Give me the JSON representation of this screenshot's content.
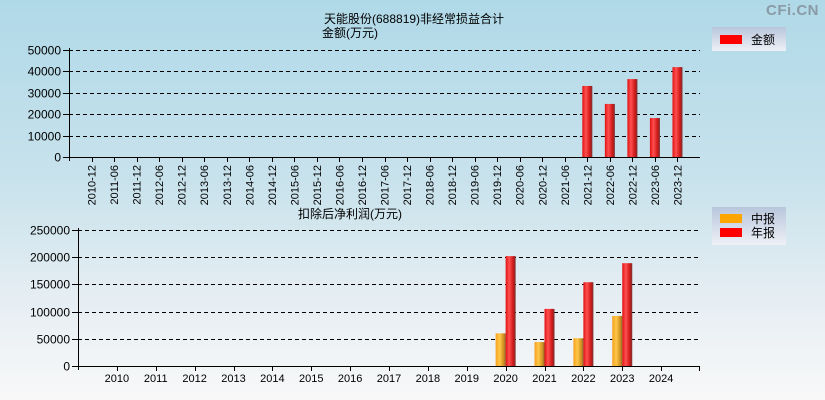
{
  "watermark": "CFi.CN",
  "chart_data": [
    {
      "type": "bar",
      "title": "天能股份(688819)非经常损益合计",
      "subtitle": "金额(万元)",
      "xlabel": "",
      "ylabel": "金额(万元)",
      "ylim": [
        0,
        50000
      ],
      "yticks": [
        0,
        10000,
        20000,
        30000,
        40000,
        50000
      ],
      "grid": true,
      "legend_position": "top-right",
      "categories": [
        "2010-12",
        "2011-06",
        "2011-12",
        "2012-06",
        "2012-12",
        "2013-06",
        "2013-12",
        "2014-06",
        "2014-12",
        "2015-06",
        "2015-12",
        "2016-06",
        "2016-12",
        "2017-06",
        "2017-12",
        "2018-06",
        "2018-12",
        "2019-06",
        "2019-12",
        "2020-06",
        "2020-12",
        "2021-06",
        "2021-12",
        "2022-06",
        "2022-12",
        "2023-06",
        "2023-12"
      ],
      "series": [
        {
          "name": "金额",
          "color": "#ff0000",
          "values": [
            null,
            null,
            null,
            null,
            null,
            null,
            null,
            null,
            null,
            null,
            null,
            null,
            null,
            null,
            null,
            null,
            null,
            null,
            null,
            null,
            null,
            null,
            33200,
            24800,
            36400,
            18200,
            42000
          ]
        }
      ]
    },
    {
      "type": "bar",
      "title": "扣除后净利润(万元)",
      "xlabel": "",
      "ylabel": "万元",
      "ylim": [
        0,
        250000
      ],
      "yticks": [
        0,
        50000,
        100000,
        150000,
        200000,
        250000
      ],
      "grid": true,
      "legend_position": "top-right",
      "categories": [
        "2010",
        "2011",
        "2012",
        "2013",
        "2014",
        "2015",
        "2016",
        "2017",
        "2018",
        "2019",
        "2020",
        "2021",
        "2022",
        "2023",
        "2024"
      ],
      "series": [
        {
          "name": "中报",
          "color": "#ffa500",
          "values": [
            null,
            null,
            null,
            null,
            null,
            null,
            null,
            null,
            null,
            null,
            60000,
            44000,
            51000,
            92000,
            null
          ]
        },
        {
          "name": "年报",
          "color": "#ff0000",
          "values": [
            null,
            null,
            null,
            null,
            null,
            null,
            null,
            null,
            null,
            null,
            202000,
            105000,
            154000,
            189000,
            null
          ]
        }
      ]
    }
  ],
  "top": {
    "title_line1": "天能股份(688819)非经常损益合计",
    "title_line2": "金额(万元)",
    "legend": [
      "金额"
    ]
  },
  "bottom": {
    "title": "扣除后净利润(万元)",
    "legend": [
      "中报",
      "年报"
    ]
  }
}
